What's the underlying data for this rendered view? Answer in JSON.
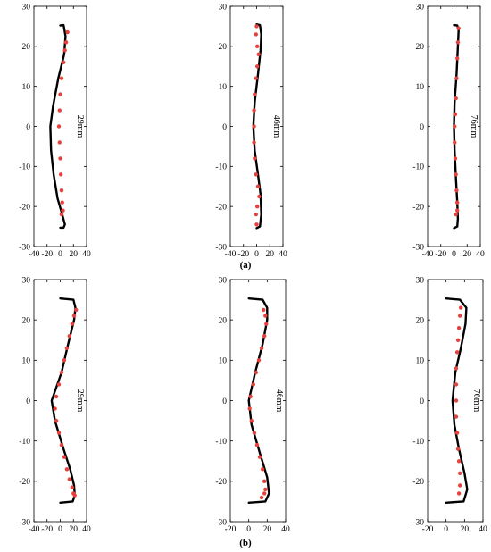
{
  "figure": {
    "row_labels": [
      "(a)",
      "(b)"
    ],
    "colors": {
      "simulation": "#000000",
      "experiment": "#e8413c"
    }
  },
  "chart_data": [
    {
      "type": "scatter",
      "row": "a",
      "annotation": "29mm",
      "xlim": [
        -40,
        40
      ],
      "ylim": [
        -30,
        30
      ],
      "xticks": [
        -40,
        -20,
        0,
        20,
        40
      ],
      "yticks": [
        -30,
        -20,
        -10,
        0,
        10,
        20,
        30
      ],
      "series": [
        {
          "kind": "line",
          "points": [
            [
              0,
              25.2
            ],
            [
              5,
              25.3
            ],
            [
              6,
              24.5
            ],
            [
              8,
              22.5
            ],
            [
              6,
              18
            ],
            [
              -3,
              12
            ],
            [
              -11,
              5
            ],
            [
              -15,
              0
            ],
            [
              -14,
              -6
            ],
            [
              -10,
              -12
            ],
            [
              -4,
              -18
            ],
            [
              3,
              -22
            ],
            [
              7,
              -24.5
            ],
            [
              5,
              -25.3
            ],
            [
              0,
              -25.3
            ]
          ]
        },
        {
          "kind": "points",
          "points": [
            [
              11,
              23.5
            ],
            [
              9,
              21
            ],
            [
              7,
              19
            ],
            [
              5,
              16
            ],
            [
              2,
              12
            ],
            [
              0,
              8
            ],
            [
              -1,
              4
            ],
            [
              -2,
              0
            ],
            [
              -1,
              -4
            ],
            [
              0,
              -8
            ],
            [
              1,
              -12
            ],
            [
              2,
              -16
            ],
            [
              3,
              -19
            ],
            [
              4,
              -21
            ],
            [
              2,
              -22
            ]
          ]
        }
      ]
    },
    {
      "type": "scatter",
      "row": "a",
      "annotation": "46mm",
      "xlim": [
        -40,
        40
      ],
      "ylim": [
        -30,
        30
      ],
      "xticks": [
        -40,
        -20,
        0,
        20,
        40
      ],
      "yticks": [
        -30,
        -20,
        -10,
        0,
        10,
        20,
        30
      ],
      "series": [
        {
          "kind": "line",
          "points": [
            [
              0,
              25.5
            ],
            [
              5,
              25.3
            ],
            [
              7,
              23
            ],
            [
              6,
              19
            ],
            [
              2,
              13
            ],
            [
              -3,
              6
            ],
            [
              -5,
              0
            ],
            [
              -3,
              -6
            ],
            [
              2,
              -12
            ],
            [
              6,
              -17
            ],
            [
              7,
              -22
            ],
            [
              5,
              -25
            ],
            [
              0,
              -25.4
            ]
          ]
        },
        {
          "kind": "points",
          "points": [
            [
              0,
              25
            ],
            [
              -1,
              23
            ],
            [
              1,
              20
            ],
            [
              3,
              18
            ],
            [
              1,
              15
            ],
            [
              -1,
              12
            ],
            [
              -3,
              8
            ],
            [
              -4,
              4
            ],
            [
              -4,
              0
            ],
            [
              -4,
              -4
            ],
            [
              -3,
              -8
            ],
            [
              -1,
              -12
            ],
            [
              2,
              -15
            ],
            [
              4,
              -17.5
            ],
            [
              1,
              -20
            ],
            [
              -1,
              -22
            ],
            [
              0,
              -24.5
            ]
          ]
        }
      ]
    },
    {
      "type": "scatter",
      "row": "a",
      "annotation": "76mm",
      "xlim": [
        -40,
        40
      ],
      "ylim": [
        -30,
        30
      ],
      "xticks": [
        -40,
        -20,
        0,
        20,
        40
      ],
      "yticks": [
        -30,
        -20,
        -10,
        0,
        10,
        20,
        30
      ],
      "series": [
        {
          "kind": "line",
          "points": [
            [
              0,
              25.3
            ],
            [
              5,
              25.2
            ],
            [
              7,
              24
            ],
            [
              6,
              20
            ],
            [
              4,
              13
            ],
            [
              1,
              6
            ],
            [
              0,
              0
            ],
            [
              1,
              -6
            ],
            [
              3,
              -13
            ],
            [
              5,
              -19
            ],
            [
              6,
              -23
            ],
            [
              5,
              -25
            ],
            [
              0,
              -25.4
            ]
          ]
        },
        {
          "kind": "points",
          "points": [
            [
              7,
              24.5
            ],
            [
              6,
              21
            ],
            [
              5,
              17
            ],
            [
              4,
              12
            ],
            [
              3,
              7
            ],
            [
              2,
              3
            ],
            [
              1,
              0
            ],
            [
              1,
              -4
            ],
            [
              2,
              -8
            ],
            [
              3,
              -12
            ],
            [
              4,
              -16
            ],
            [
              5,
              -19
            ],
            [
              5,
              -21
            ],
            [
              3,
              -22
            ]
          ]
        }
      ]
    },
    {
      "type": "scatter",
      "row": "b",
      "annotation": "29mm",
      "xlim": [
        -40,
        40
      ],
      "ylim": [
        -30,
        30
      ],
      "xticks": [
        -40,
        -20,
        0,
        20,
        40
      ],
      "yticks": [
        -30,
        -20,
        -10,
        0,
        10,
        20,
        30
      ],
      "series": [
        {
          "kind": "line",
          "points": [
            [
              0,
              25.3
            ],
            [
              20,
              25
            ],
            [
              23,
              23
            ],
            [
              21,
              20
            ],
            [
              12,
              14
            ],
            [
              2,
              7
            ],
            [
              -13,
              0
            ],
            [
              -8,
              -5
            ],
            [
              5,
              -12
            ],
            [
              15,
              -17
            ],
            [
              21,
              -21
            ],
            [
              22,
              -23.5
            ],
            [
              19,
              -25
            ],
            [
              0,
              -25.3
            ]
          ]
        },
        {
          "kind": "points",
          "points": [
            [
              24,
              22.5
            ],
            [
              21,
              21
            ],
            [
              18,
              19
            ],
            [
              14,
              16
            ],
            [
              10,
              13
            ],
            [
              6,
              10
            ],
            [
              2,
              7
            ],
            [
              -2,
              4
            ],
            [
              -6,
              1
            ],
            [
              -8,
              -2
            ],
            [
              -6,
              -5
            ],
            [
              -2,
              -8
            ],
            [
              2,
              -11
            ],
            [
              6,
              -14
            ],
            [
              10,
              -17
            ],
            [
              14,
              -19.5
            ],
            [
              18,
              -21.5
            ],
            [
              20,
              -23
            ],
            [
              22,
              -23.5
            ]
          ]
        }
      ]
    },
    {
      "type": "scatter",
      "row": "b",
      "annotation": "46mm",
      "xlim": [
        -20,
        40
      ],
      "ylim": [
        -30,
        30
      ],
      "xticks": [
        -20,
        0,
        20,
        40
      ],
      "yticks": [
        -30,
        -20,
        -10,
        0,
        10,
        20,
        30
      ],
      "series": [
        {
          "kind": "line",
          "points": [
            [
              0,
              25.3
            ],
            [
              15,
              25
            ],
            [
              20,
              23
            ],
            [
              20,
              20
            ],
            [
              15,
              14
            ],
            [
              7,
              7
            ],
            [
              0,
              0
            ],
            [
              3,
              -6
            ],
            [
              12,
              -13
            ],
            [
              20,
              -19
            ],
            [
              22,
              -23
            ],
            [
              18,
              -25
            ],
            [
              0,
              -25.3
            ]
          ]
        },
        {
          "kind": "points",
          "points": [
            [
              16,
              22.5
            ],
            [
              18,
              21
            ],
            [
              19,
              19
            ],
            [
              17,
              16
            ],
            [
              14,
              13
            ],
            [
              11,
              10
            ],
            [
              8,
              7
            ],
            [
              5,
              4
            ],
            [
              2,
              1
            ],
            [
              1,
              -2
            ],
            [
              3,
              -5
            ],
            [
              6,
              -8
            ],
            [
              9,
              -11
            ],
            [
              12,
              -14
            ],
            [
              15,
              -17
            ],
            [
              17,
              -20
            ],
            [
              18,
              -22
            ],
            [
              17,
              -23
            ],
            [
              14,
              -24
            ]
          ]
        }
      ]
    },
    {
      "type": "scatter",
      "row": "b",
      "annotation": "76mm",
      "xlim": [
        -20,
        40
      ],
      "ylim": [
        -30,
        30
      ],
      "xticks": [
        -20,
        0,
        20,
        40
      ],
      "yticks": [
        -30,
        -20,
        -10,
        0,
        10,
        20,
        30
      ],
      "series": [
        {
          "kind": "line",
          "points": [
            [
              0,
              25.3
            ],
            [
              15,
              25
            ],
            [
              22,
              23
            ],
            [
              21,
              19
            ],
            [
              16,
              13
            ],
            [
              10,
              7
            ],
            [
              7,
              0
            ],
            [
              9,
              -6
            ],
            [
              14,
              -12
            ],
            [
              20,
              -18
            ],
            [
              23,
              -22
            ],
            [
              19,
              -25
            ],
            [
              0,
              -25.3
            ]
          ]
        },
        {
          "kind": "points",
          "points": [
            [
              16,
              23
            ],
            [
              15,
              21
            ],
            [
              14,
              18
            ],
            [
              13,
              15
            ],
            [
              12,
              12
            ],
            [
              11,
              8
            ],
            [
              11,
              4
            ],
            [
              11,
              0
            ],
            [
              11,
              -4
            ],
            [
              12,
              -8
            ],
            [
              13,
              -12
            ],
            [
              14,
              -15
            ],
            [
              15,
              -18
            ],
            [
              15,
              -21
            ],
            [
              14,
              -23
            ]
          ]
        }
      ]
    }
  ]
}
